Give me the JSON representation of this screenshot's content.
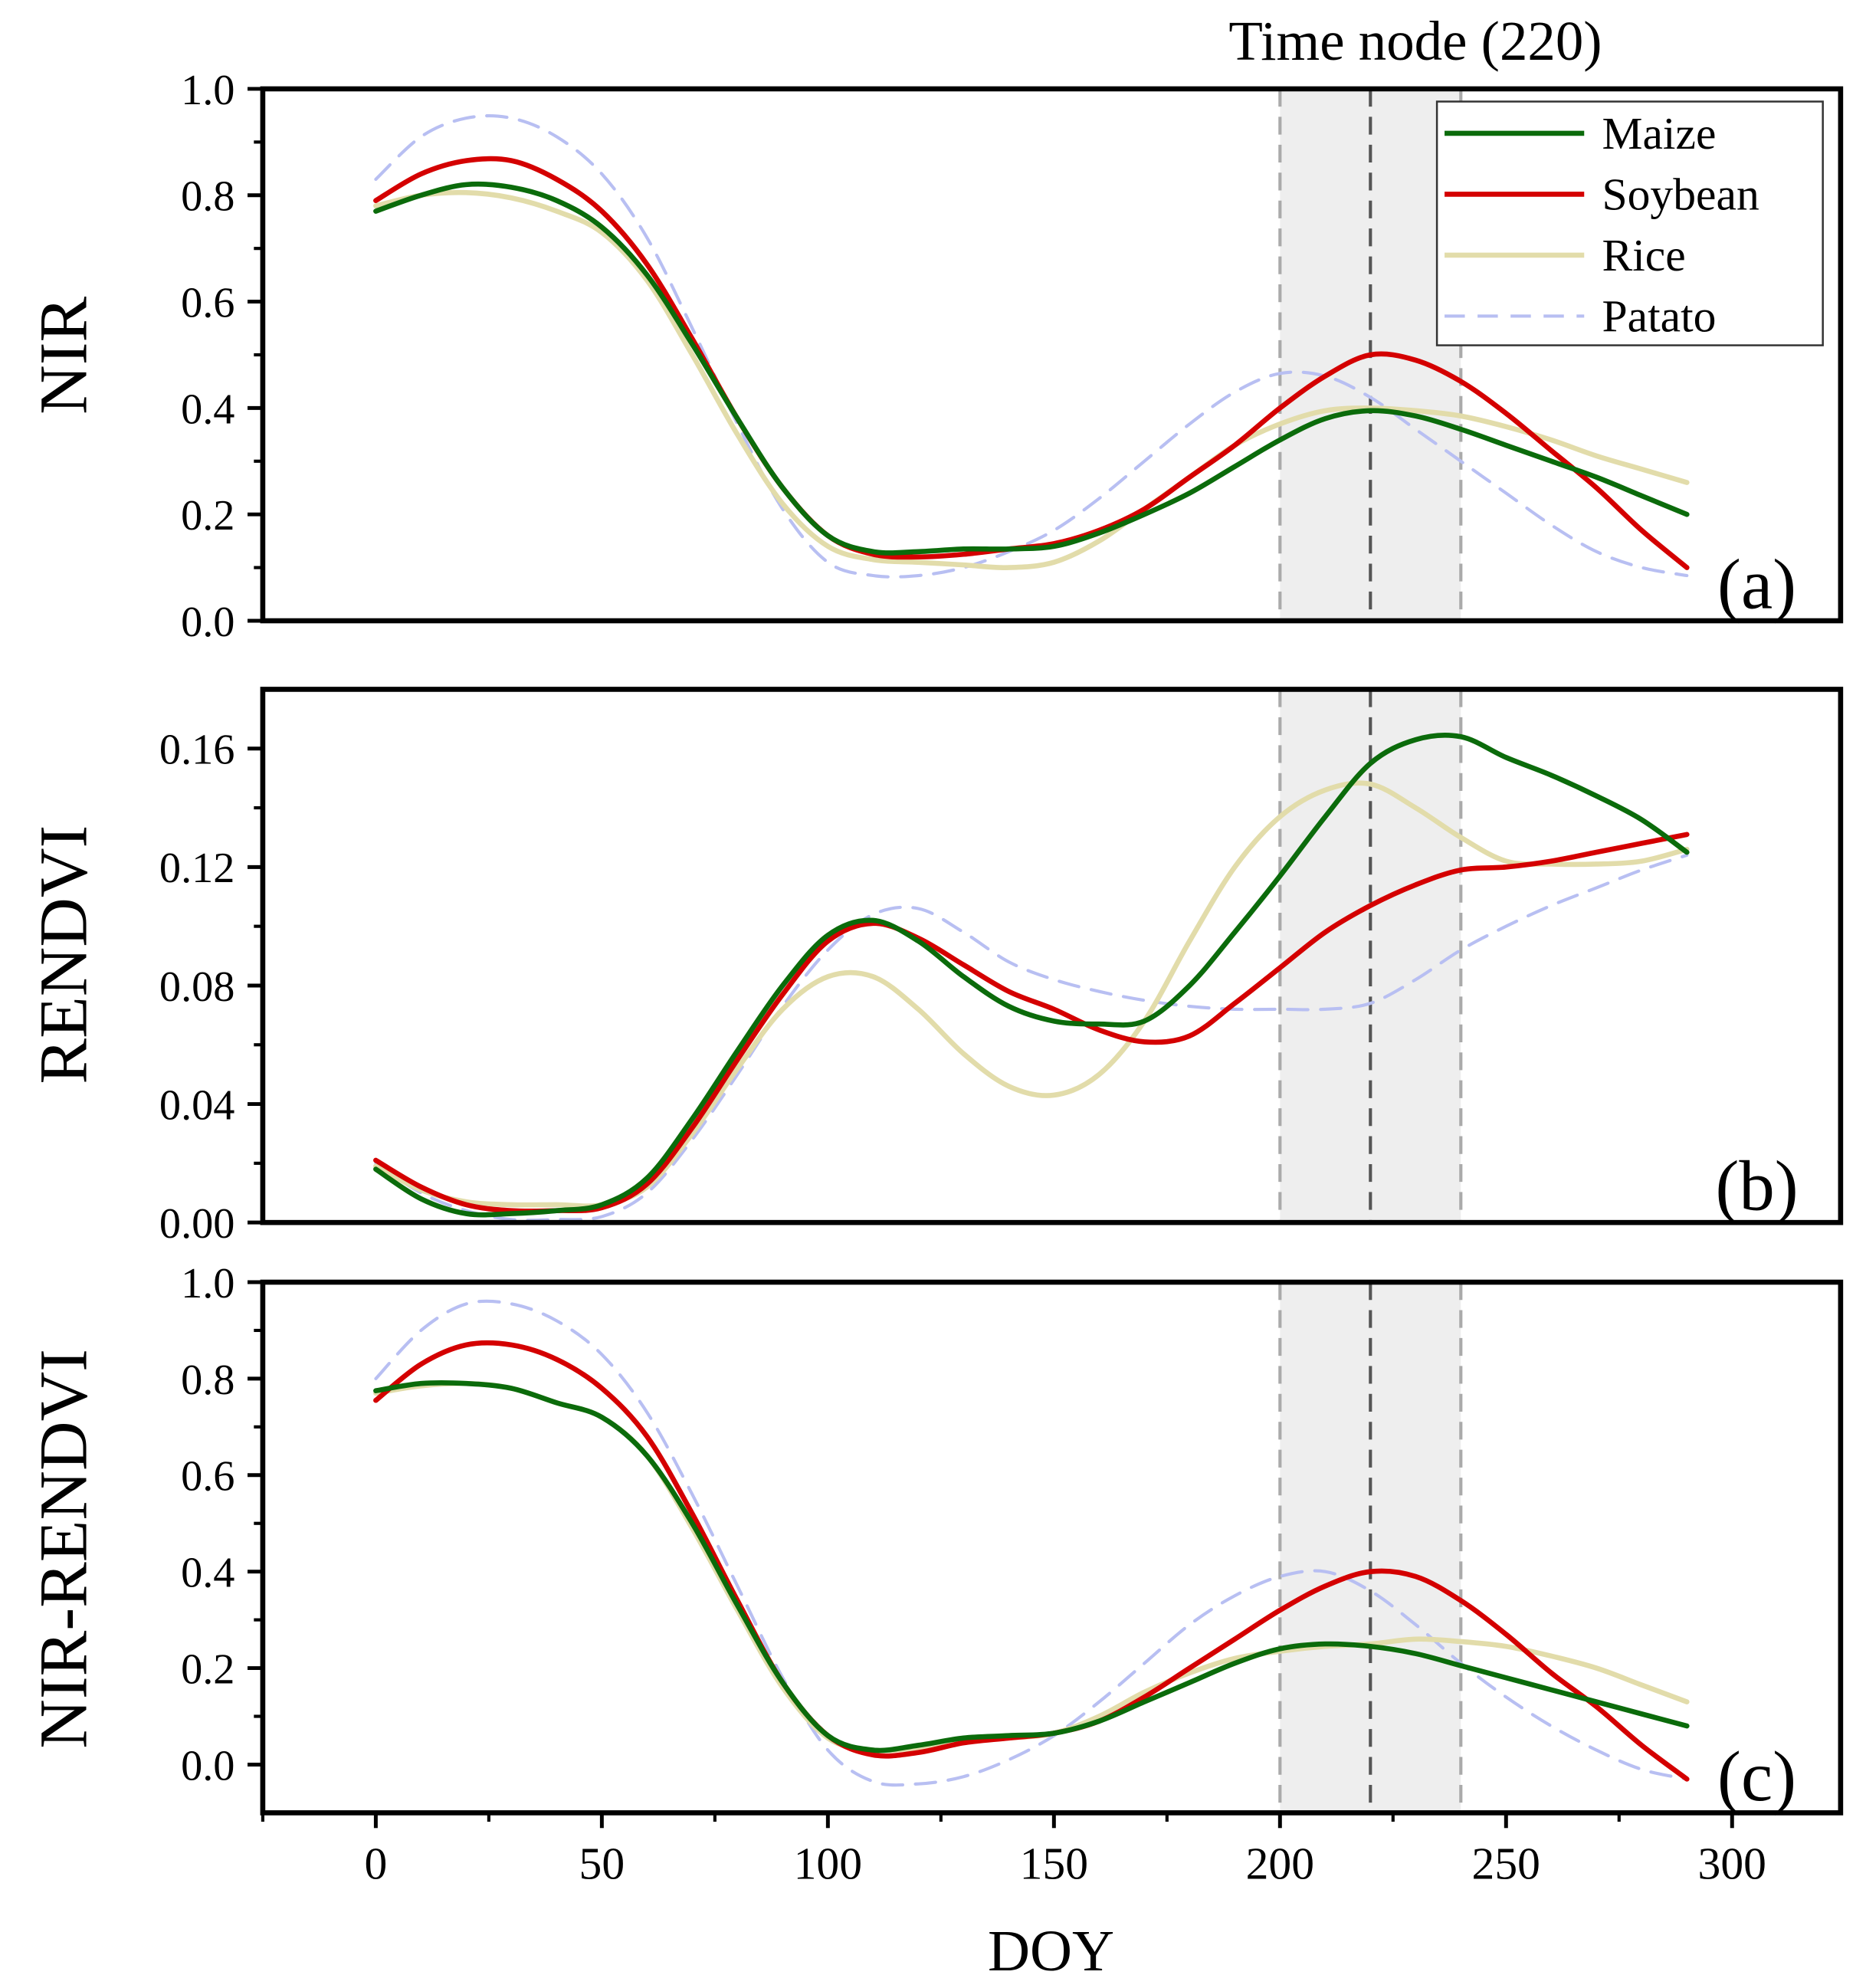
{
  "chart_data": {
    "type": "line",
    "title": "Time node (220)",
    "xlabel": "DOY",
    "xlim": [
      -25,
      324
    ],
    "xticks": [
      0,
      50,
      100,
      150,
      200,
      250,
      300
    ],
    "time_node": 220,
    "shaded_range": [
      200,
      240
    ],
    "legend_placement": "top-right",
    "colors": {
      "Maize": "#0b6b0b",
      "Soybean": "#d40000",
      "Rice": "#e2dcaa",
      "Patato": "#b8bff2"
    },
    "x": [
      0,
      10,
      20,
      30,
      40,
      50,
      60,
      70,
      80,
      90,
      100,
      110,
      120,
      130,
      140,
      150,
      160,
      170,
      180,
      190,
      200,
      210,
      220,
      230,
      240,
      250,
      260,
      270,
      280,
      290
    ],
    "panels": [
      {
        "label": "(a)",
        "ylabel": "NIR",
        "ylim": [
          0,
          1.0
        ],
        "yticks": [
          "0.0",
          "0.2",
          "0.4",
          "0.6",
          "0.8",
          "1.0"
        ],
        "series": [
          {
            "name": "Maize",
            "values": [
              0.77,
              0.8,
              0.82,
              0.815,
              0.79,
              0.74,
              0.65,
              0.52,
              0.38,
              0.25,
              0.16,
              0.13,
              0.13,
              0.135,
              0.135,
              0.14,
              0.165,
              0.2,
              0.24,
              0.29,
              0.34,
              0.38,
              0.395,
              0.385,
              0.36,
              0.33,
              0.3,
              0.27,
              0.235,
              0.2
            ]
          },
          {
            "name": "Soybean",
            "values": [
              0.79,
              0.84,
              0.865,
              0.865,
              0.83,
              0.77,
              0.67,
              0.53,
              0.38,
              0.25,
              0.16,
              0.125,
              0.12,
              0.125,
              0.135,
              0.145,
              0.17,
              0.21,
              0.27,
              0.33,
              0.4,
              0.46,
              0.5,
              0.49,
              0.45,
              0.39,
              0.32,
              0.25,
              0.17,
              0.1
            ]
          },
          {
            "name": "Rice",
            "values": [
              0.78,
              0.8,
              0.805,
              0.795,
              0.77,
              0.73,
              0.64,
              0.5,
              0.35,
              0.22,
              0.14,
              0.115,
              0.11,
              0.105,
              0.1,
              0.11,
              0.15,
              0.21,
              0.27,
              0.33,
              0.37,
              0.395,
              0.4,
              0.395,
              0.385,
              0.365,
              0.34,
              0.31,
              0.285,
              0.26
            ]
          },
          {
            "name": "Patato",
            "values": [
              0.83,
              0.91,
              0.945,
              0.945,
              0.91,
              0.84,
              0.72,
              0.55,
              0.37,
              0.21,
              0.11,
              0.085,
              0.085,
              0.1,
              0.13,
              0.17,
              0.23,
              0.3,
              0.37,
              0.43,
              0.465,
              0.46,
              0.42,
              0.36,
              0.3,
              0.24,
              0.18,
              0.13,
              0.1,
              0.085
            ]
          }
        ]
      },
      {
        "label": "(b)",
        "ylabel": "RENDVI",
        "ylim": [
          0,
          0.18
        ],
        "yticks": [
          "0.00",
          "0.04",
          "0.08",
          "0.12",
          "0.16"
        ],
        "series": [
          {
            "name": "Maize",
            "values": [
              0.018,
              0.008,
              0.003,
              0.003,
              0.004,
              0.006,
              0.015,
              0.035,
              0.058,
              0.08,
              0.097,
              0.102,
              0.095,
              0.083,
              0.073,
              0.068,
              0.067,
              0.068,
              0.08,
              0.098,
              0.117,
              0.137,
              0.155,
              0.163,
              0.164,
              0.157,
              0.151,
              0.144,
              0.136,
              0.125
            ]
          },
          {
            "name": "Soybean",
            "values": [
              0.021,
              0.012,
              0.006,
              0.004,
              0.004,
              0.005,
              0.013,
              0.032,
              0.055,
              0.077,
              0.095,
              0.101,
              0.096,
              0.087,
              0.078,
              0.072,
              0.065,
              0.061,
              0.063,
              0.074,
              0.086,
              0.098,
              0.107,
              0.114,
              0.119,
              0.12,
              0.122,
              0.125,
              0.128,
              0.131
            ]
          },
          {
            "name": "Rice",
            "values": [
              0.019,
              0.011,
              0.007,
              0.006,
              0.006,
              0.006,
              0.012,
              0.03,
              0.052,
              0.072,
              0.083,
              0.083,
              0.072,
              0.057,
              0.046,
              0.043,
              0.05,
              0.068,
              0.095,
              0.12,
              0.137,
              0.146,
              0.148,
              0.14,
              0.13,
              0.122,
              0.121,
              0.121,
              0.122,
              0.126
            ]
          },
          {
            "name": "Patato",
            "values": [
              0.02,
              0.01,
              0.004,
              0.001,
              0.001,
              0.002,
              0.01,
              0.028,
              0.05,
              0.073,
              0.092,
              0.104,
              0.106,
              0.098,
              0.088,
              0.082,
              0.078,
              0.075,
              0.073,
              0.072,
              0.072,
              0.072,
              0.074,
              0.082,
              0.092,
              0.1,
              0.107,
              0.113,
              0.119,
              0.124
            ]
          }
        ]
      },
      {
        "label": "(c)",
        "ylabel": "NIR-RENDVI",
        "ylim": [
          -0.1,
          1.0
        ],
        "yticks": [
          "0.0",
          "0.2",
          "0.4",
          "0.6",
          "0.8",
          "1.0"
        ],
        "series": [
          {
            "name": "Maize",
            "values": [
              0.775,
              0.79,
              0.79,
              0.78,
              0.75,
              0.72,
              0.64,
              0.5,
              0.33,
              0.17,
              0.06,
              0.03,
              0.04,
              0.055,
              0.06,
              0.065,
              0.09,
              0.13,
              0.17,
              0.21,
              0.24,
              0.25,
              0.245,
              0.23,
              0.205,
              0.18,
              0.155,
              0.13,
              0.105,
              0.08
            ]
          },
          {
            "name": "Soybean",
            "values": [
              0.755,
              0.83,
              0.87,
              0.87,
              0.84,
              0.78,
              0.68,
              0.52,
              0.34,
              0.17,
              0.06,
              0.02,
              0.025,
              0.045,
              0.055,
              0.065,
              0.09,
              0.14,
              0.2,
              0.26,
              0.32,
              0.37,
              0.4,
              0.39,
              0.34,
              0.27,
              0.19,
              0.12,
              0.04,
              -0.03
            ]
          },
          {
            "name": "Rice",
            "values": [
              0.77,
              0.785,
              0.79,
              0.78,
              0.75,
              0.72,
              0.64,
              0.49,
              0.32,
              0.16,
              0.055,
              0.03,
              0.035,
              0.05,
              0.055,
              0.065,
              0.1,
              0.15,
              0.19,
              0.22,
              0.235,
              0.245,
              0.25,
              0.26,
              0.255,
              0.245,
              0.225,
              0.2,
              0.165,
              0.13
            ]
          },
          {
            "name": "Patato",
            "values": [
              0.8,
              0.9,
              0.955,
              0.955,
              0.92,
              0.85,
              0.73,
              0.56,
              0.37,
              0.18,
              0.03,
              -0.035,
              -0.04,
              -0.025,
              0.01,
              0.06,
              0.13,
              0.21,
              0.29,
              0.35,
              0.39,
              0.4,
              0.36,
              0.29,
              0.21,
              0.14,
              0.08,
              0.03,
              -0.01,
              -0.03
            ]
          }
        ]
      }
    ],
    "legend": [
      "Maize",
      "Soybean",
      "Rice",
      "Patato"
    ]
  }
}
